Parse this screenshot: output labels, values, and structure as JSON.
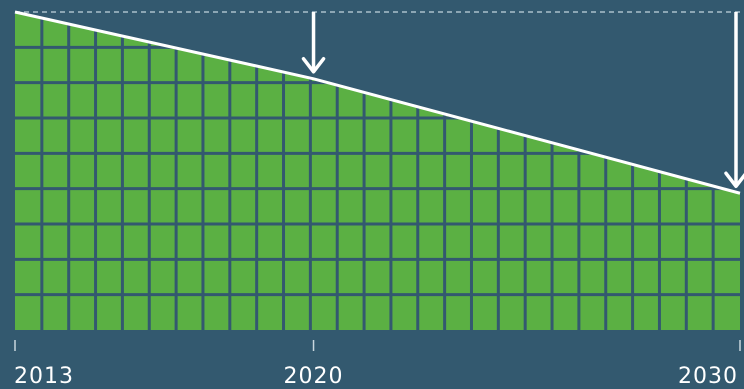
{
  "colors": {
    "background": "#33596f",
    "fill": "#5bb043",
    "grid": "#33596f",
    "line": "#ffffff"
  },
  "chart_data": {
    "type": "area",
    "title": "",
    "xlabel": "",
    "ylabel": "",
    "x": [
      2013,
      2020,
      2030
    ],
    "series": [
      {
        "values": [
          100,
          79,
          43
        ]
      }
    ],
    "xlim": [
      2013,
      2030
    ],
    "ylim": [
      0,
      100
    ],
    "tick_labels": [
      "2013",
      "2020",
      "2030"
    ],
    "annotations": [
      {
        "type": "arrow-down",
        "x": 2020
      },
      {
        "type": "arrow-down",
        "x": 2030
      }
    ],
    "reference_line": {
      "y": 100,
      "style": "dashed"
    }
  }
}
